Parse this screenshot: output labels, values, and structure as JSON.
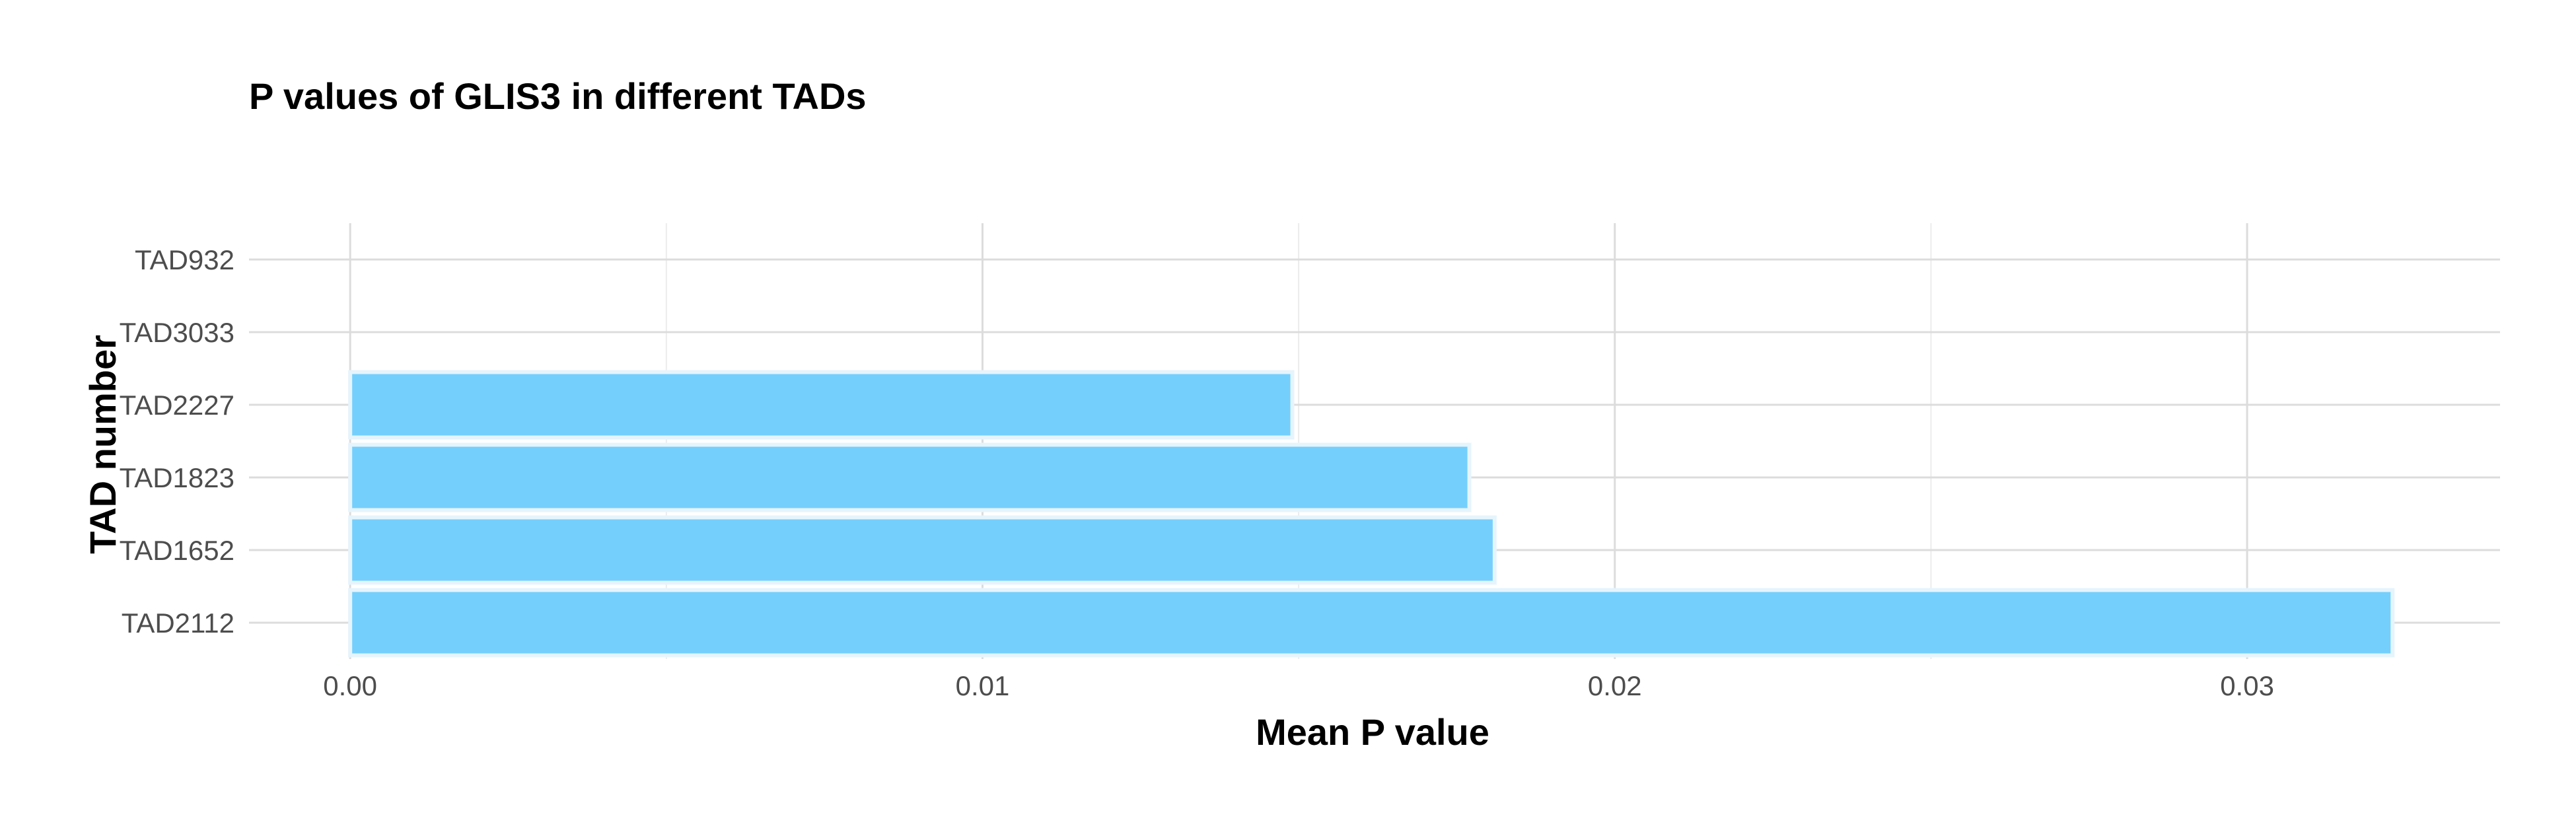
{
  "chart_data": {
    "type": "bar",
    "orientation": "horizontal",
    "title": "P values of GLIS3 in different TADs",
    "xlabel": "Mean P value",
    "ylabel": "TAD number",
    "categories": [
      "TAD2112",
      "TAD1652",
      "TAD1823",
      "TAD2227",
      "TAD3033",
      "TAD932"
    ],
    "values": [
      0.0323,
      0.0181,
      0.0177,
      0.0149,
      0,
      0
    ],
    "xlim": [
      -0.0016,
      0.034
    ],
    "xticks": [
      0.0,
      0.01,
      0.02,
      0.03
    ],
    "xtick_labels": [
      "0.00",
      "0.01",
      "0.02",
      "0.03"
    ],
    "grid": true,
    "legend": "none",
    "bar_color": "#75CFFC",
    "bar_edge_color": "#E6F4FC"
  }
}
